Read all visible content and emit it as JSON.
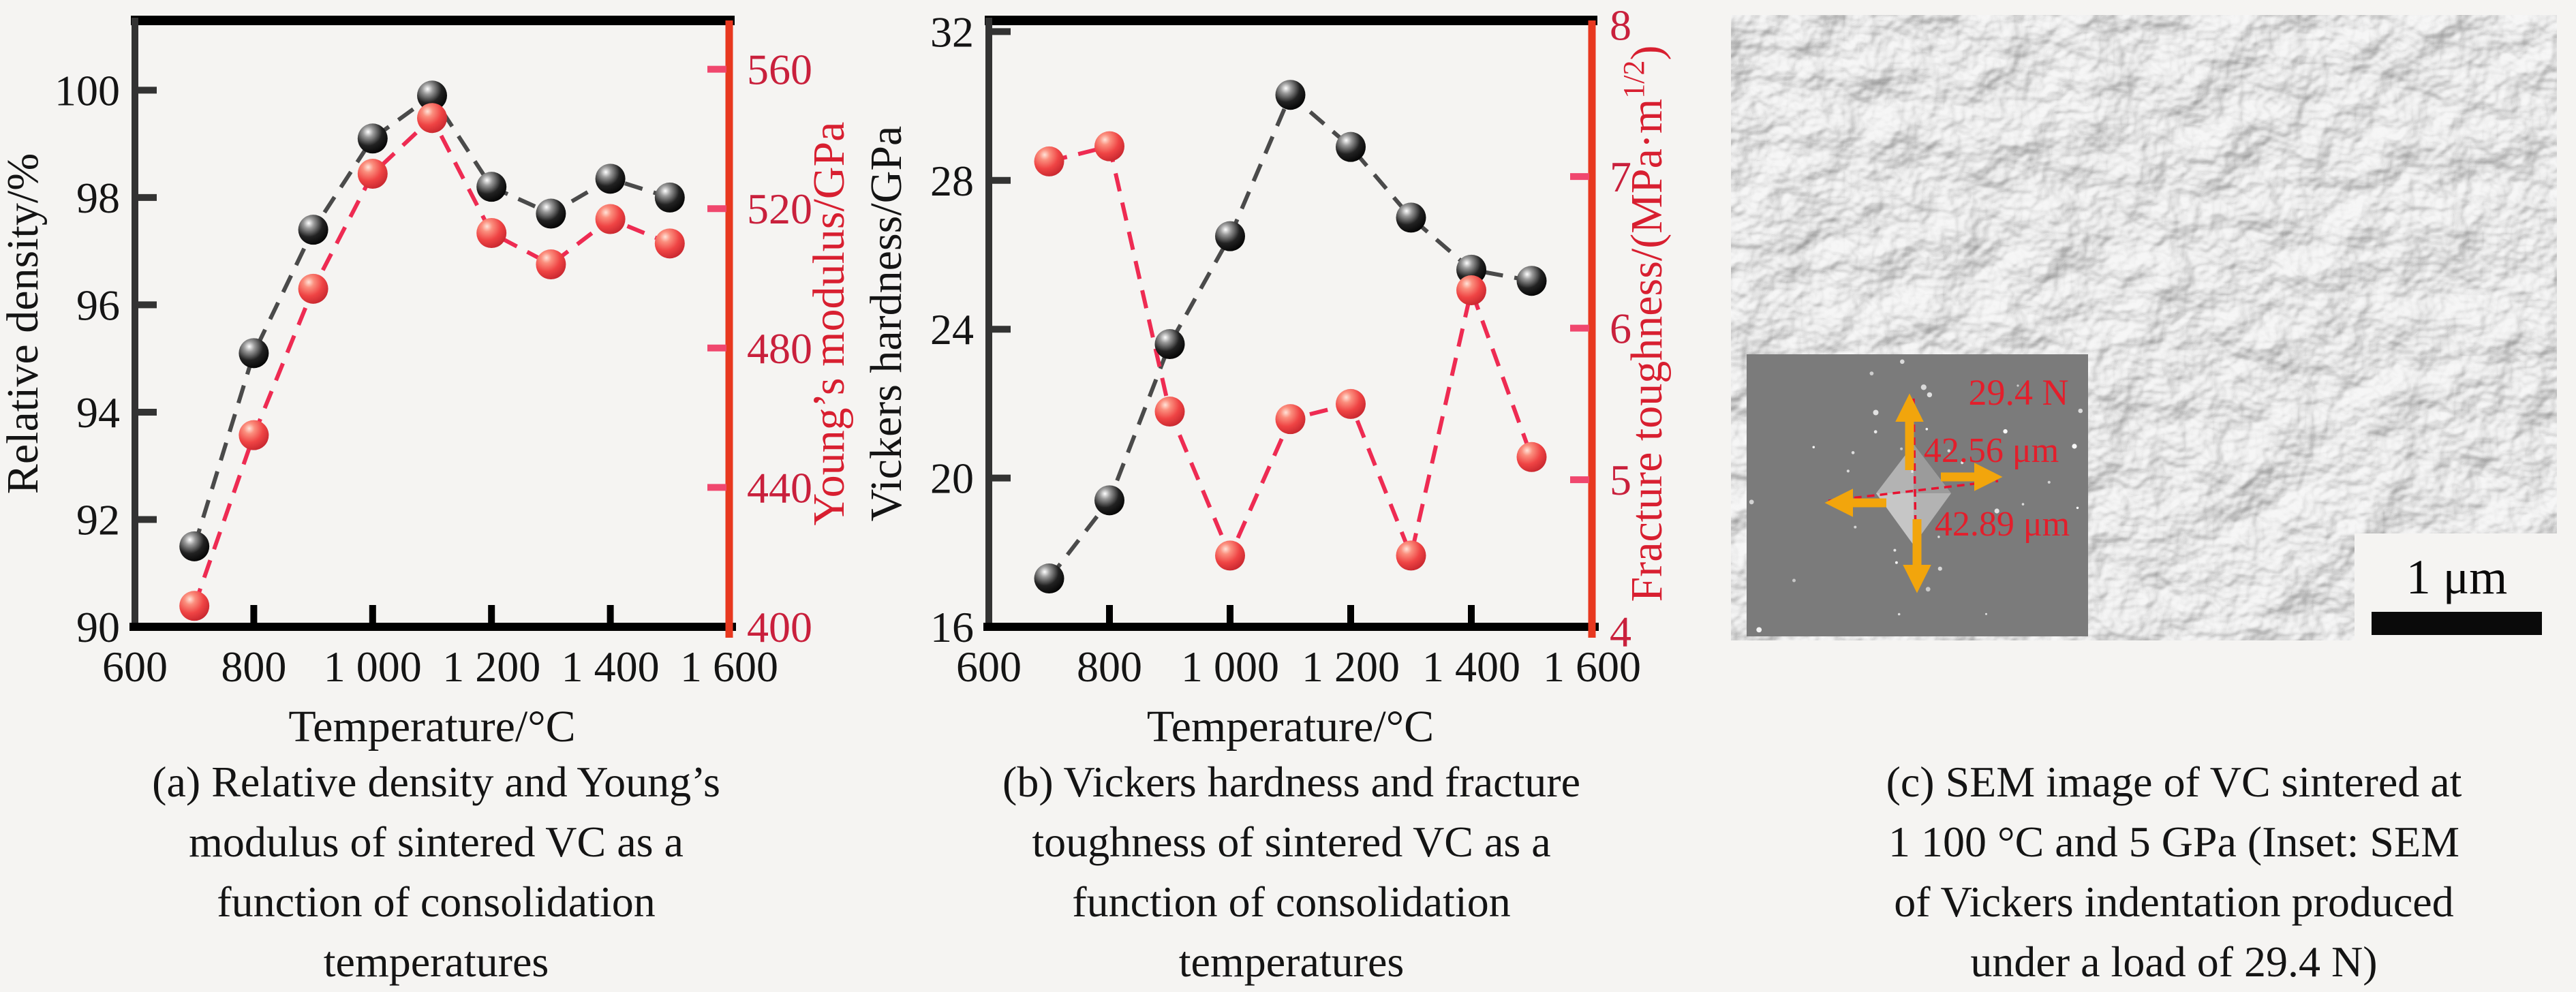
{
  "figure": {
    "background": "#f5f4f2"
  },
  "colors": {
    "text": "#141414",
    "black_series_line": "#4a4a4a",
    "red_series_line": "#ee2b52",
    "right_spine": "#e8381f",
    "right_tick": "#f0476e",
    "right_tick_label": "#c9203c",
    "right_axis_title": "#d81f30",
    "left_spine": "#333333",
    "frame": "#000000",
    "inset_background": "#7b7b7b",
    "inset_text": "#e31e2b",
    "arrow": "#f2a50c",
    "crosshair": "#e8112f",
    "scale_bar": "#0a0a0a"
  },
  "chart_data": [
    {
      "id": "a",
      "type": "scatter",
      "x": [
        700,
        800,
        900,
        1000,
        1100,
        1200,
        1300,
        1400,
        1500
      ],
      "xlim": [
        600,
        1600
      ],
      "x_ticks": [
        600,
        800,
        1000,
        1200,
        1400,
        1600
      ],
      "x_tick_labels": [
        "600",
        "800",
        "1 000",
        "1 200",
        "1 400",
        "1 600"
      ],
      "xlabel": "Temperature/°C",
      "axes": {
        "left": {
          "label": "Relative density/%",
          "ticks": [
            90,
            92,
            94,
            96,
            98,
            100
          ],
          "tick_labels": [
            "90",
            "92",
            "94",
            "96",
            "98",
            "100"
          ],
          "lim": [
            90,
            101.3
          ]
        },
        "right": {
          "label": "Young’s modulus/GPa",
          "label_sup": "",
          "label_close": "",
          "ticks": [
            400,
            440,
            480,
            520,
            560
          ],
          "tick_labels": [
            "400",
            "440",
            "480",
            "520",
            "560"
          ],
          "lim": [
            400,
            574
          ]
        }
      },
      "series": [
        {
          "name": "Relative density",
          "axis": "left",
          "marker": "black-sphere",
          "values": [
            91.5,
            95.1,
            97.4,
            99.1,
            99.9,
            98.2,
            97.7,
            98.35,
            98.0
          ]
        },
        {
          "name": "Young's modulus",
          "axis": "right",
          "marker": "red-sphere",
          "values": [
            406,
            455,
            497,
            530,
            546,
            513,
            504,
            517,
            510
          ]
        }
      ],
      "grid": false,
      "legend": "none"
    },
    {
      "id": "b",
      "type": "scatter",
      "x": [
        700,
        800,
        900,
        1000,
        1100,
        1200,
        1300,
        1400,
        1500
      ],
      "xlim": [
        600,
        1600
      ],
      "x_ticks": [
        600,
        800,
        1000,
        1200,
        1400,
        1600
      ],
      "x_tick_labels": [
        "600",
        "800",
        "1 000",
        "1 200",
        "1 400",
        "1 600"
      ],
      "xlabel": "Temperature/°C",
      "axes": {
        "left": {
          "label": "Vickers hardness/GPa",
          "ticks": [
            16,
            20,
            24,
            28,
            32
          ],
          "tick_labels": [
            "16",
            "20",
            "24",
            "28",
            "32"
          ],
          "lim": [
            16,
            32.3
          ]
        },
        "right": {
          "label": "Fracture toughness/(MPa·m",
          "label_sup": "1/2",
          "label_close": ")",
          "ticks": [
            4,
            5,
            6,
            7,
            8
          ],
          "tick_labels": [
            "4",
            "5",
            "6",
            "7",
            "8"
          ],
          "lim": [
            4.03,
            8.03
          ]
        }
      },
      "series": [
        {
          "name": "Vickers hardness",
          "axis": "left",
          "marker": "black-sphere",
          "values": [
            17.3,
            19.4,
            23.6,
            26.5,
            30.3,
            28.9,
            27.0,
            25.6,
            25.3
          ]
        },
        {
          "name": "Fracture toughness",
          "axis": "right",
          "marker": "red-sphere",
          "values": [
            7.1,
            7.2,
            5.45,
            4.5,
            5.4,
            5.5,
            4.5,
            6.25,
            5.15
          ]
        }
      ],
      "grid": false,
      "legend": "none"
    }
  ],
  "captions": {
    "a": [
      "(a) Relative density and Young’s",
      "modulus of sintered VC as a",
      "function of consolidation",
      "temperatures"
    ],
    "b": [
      "(b) Vickers hardness and fracture",
      "toughness of sintered VC as a",
      "function of consolidation",
      "temperatures"
    ],
    "c": [
      "(c) SEM image of VC sintered at",
      "1 100 °C and 5 GPa (Inset: SEM",
      "of Vickers indentation produced",
      "under a load of 29.4 N)"
    ]
  },
  "sem": {
    "scale_bar_label": "1 μm",
    "inset": {
      "load_label": "29.4 N",
      "vertical_diagonal_label": "42.56 μm",
      "horizontal_diagonal_label": "42.89 μm"
    }
  }
}
